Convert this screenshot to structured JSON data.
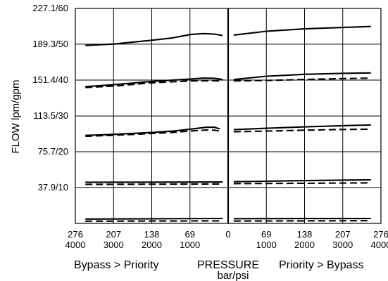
{
  "chart_data": {
    "type": "line",
    "ylabel": "FLOW lpm/gpm",
    "xlabel": "PRESSURE",
    "xunit": "bar/psi",
    "left_label": "Bypass > Priority",
    "right_label": "Priority > Bypass",
    "ylim": [
      0,
      227.1
    ],
    "y_ticks": [
      {
        "value": 37.9,
        "label": "37.9/10"
      },
      {
        "value": 75.7,
        "label": "75.7/20"
      },
      {
        "value": 113.5,
        "label": "113.5/30"
      },
      {
        "value": 151.4,
        "label": "151.4/40"
      },
      {
        "value": 189.3,
        "label": "189.3/50"
      },
      {
        "value": 227.1,
        "label": "227.1/60"
      }
    ],
    "x_ticks": [
      {
        "x": -276,
        "bar": "276",
        "psi": "4000"
      },
      {
        "x": -207,
        "bar": "207",
        "psi": "3000"
      },
      {
        "x": -138,
        "bar": "138",
        "psi": "2000"
      },
      {
        "x": -69,
        "bar": "69",
        "psi": "1000"
      },
      {
        "x": 0,
        "bar": "0",
        "psi": ""
      },
      {
        "x": 69,
        "bar": "69",
        "psi": "1000"
      },
      {
        "x": 138,
        "bar": "138",
        "psi": "2000"
      },
      {
        "x": 207,
        "bar": "207",
        "psi": "3000"
      },
      {
        "x": 276,
        "bar": "276",
        "psi": "4000"
      }
    ],
    "xlim": [
      -276,
      276
    ],
    "series": [
      {
        "style": "solid",
        "points": [
          [
            -258,
            188
          ],
          [
            -207,
            189.5
          ],
          [
            -138,
            193.5
          ],
          [
            -100,
            196
          ],
          [
            -69,
            199.5
          ],
          [
            -45,
            200.5
          ],
          [
            -25,
            200
          ],
          [
            -10,
            198.5
          ]
        ]
      },
      {
        "style": "solid",
        "points": [
          [
            10,
            199
          ],
          [
            40,
            201
          ],
          [
            69,
            203
          ],
          [
            138,
            205.5
          ],
          [
            207,
            207
          ],
          [
            258,
            208
          ]
        ]
      },
      {
        "style": "solid",
        "points": [
          [
            -258,
            144.5
          ],
          [
            -207,
            146.5
          ],
          [
            -138,
            150
          ],
          [
            -69,
            152.5
          ],
          [
            -45,
            153.5
          ],
          [
            -25,
            153.3
          ],
          [
            -10,
            152
          ]
        ]
      },
      {
        "style": "dashed",
        "points": [
          [
            -258,
            143.5
          ],
          [
            -207,
            145
          ],
          [
            -138,
            148.5
          ],
          [
            -69,
            150.5
          ],
          [
            -25,
            150.7
          ],
          [
            -10,
            150.2
          ]
        ]
      },
      {
        "style": "solid",
        "points": [
          [
            10,
            152
          ],
          [
            69,
            155.5
          ],
          [
            138,
            157.5
          ],
          [
            207,
            158.5
          ],
          [
            258,
            159
          ]
        ]
      },
      {
        "style": "dashed",
        "points": [
          [
            10,
            150.5
          ],
          [
            69,
            151
          ],
          [
            138,
            152
          ],
          [
            207,
            153
          ],
          [
            258,
            153.5
          ]
        ]
      },
      {
        "style": "solid",
        "points": [
          [
            -258,
            93
          ],
          [
            -207,
            94
          ],
          [
            -138,
            96
          ],
          [
            -100,
            97.5
          ],
          [
            -69,
            99.5
          ],
          [
            -40,
            101.5
          ],
          [
            -25,
            101.6
          ],
          [
            -15,
            99.8
          ]
        ]
      },
      {
        "style": "dashed",
        "points": [
          [
            -258,
            92
          ],
          [
            -207,
            93.1
          ],
          [
            -138,
            95
          ],
          [
            -100,
            96.2
          ],
          [
            -69,
            97.6
          ],
          [
            -40,
            98.6
          ],
          [
            -25,
            98.5
          ],
          [
            -15,
            97.5
          ]
        ]
      },
      {
        "style": "solid",
        "points": [
          [
            10,
            99
          ],
          [
            69,
            100.5
          ],
          [
            138,
            102
          ],
          [
            207,
            103.2
          ],
          [
            258,
            104
          ]
        ]
      },
      {
        "style": "dashed",
        "points": [
          [
            10,
            96.8
          ],
          [
            69,
            97.5
          ],
          [
            138,
            98.5
          ],
          [
            207,
            99.2
          ],
          [
            258,
            99.5
          ]
        ]
      },
      {
        "style": "solid",
        "points": [
          [
            -258,
            43.5
          ],
          [
            -138,
            43.6
          ],
          [
            -10,
            43.7
          ]
        ]
      },
      {
        "style": "dashed",
        "points": [
          [
            -258,
            41.2
          ],
          [
            -138,
            41.4
          ],
          [
            -10,
            41.6
          ]
        ]
      },
      {
        "style": "solid",
        "points": [
          [
            10,
            44
          ],
          [
            69,
            44.5
          ],
          [
            138,
            45.2
          ],
          [
            207,
            45.7
          ],
          [
            258,
            46
          ]
        ]
      },
      {
        "style": "dashed",
        "points": [
          [
            10,
            42
          ],
          [
            138,
            42.4
          ],
          [
            258,
            42.8
          ]
        ]
      },
      {
        "style": "solid",
        "points": [
          [
            -258,
            4.6
          ],
          [
            -138,
            4.9
          ],
          [
            -10,
            5.2
          ]
        ]
      },
      {
        "style": "dashed",
        "points": [
          [
            -258,
            2.3
          ],
          [
            -138,
            2.5
          ],
          [
            -10,
            2.7
          ]
        ]
      },
      {
        "style": "solid",
        "points": [
          [
            10,
            5
          ],
          [
            138,
            5.1
          ],
          [
            258,
            5.2
          ]
        ]
      },
      {
        "style": "dashed",
        "points": [
          [
            10,
            2.5
          ],
          [
            138,
            2.7
          ],
          [
            258,
            2.9
          ]
        ]
      }
    ]
  }
}
